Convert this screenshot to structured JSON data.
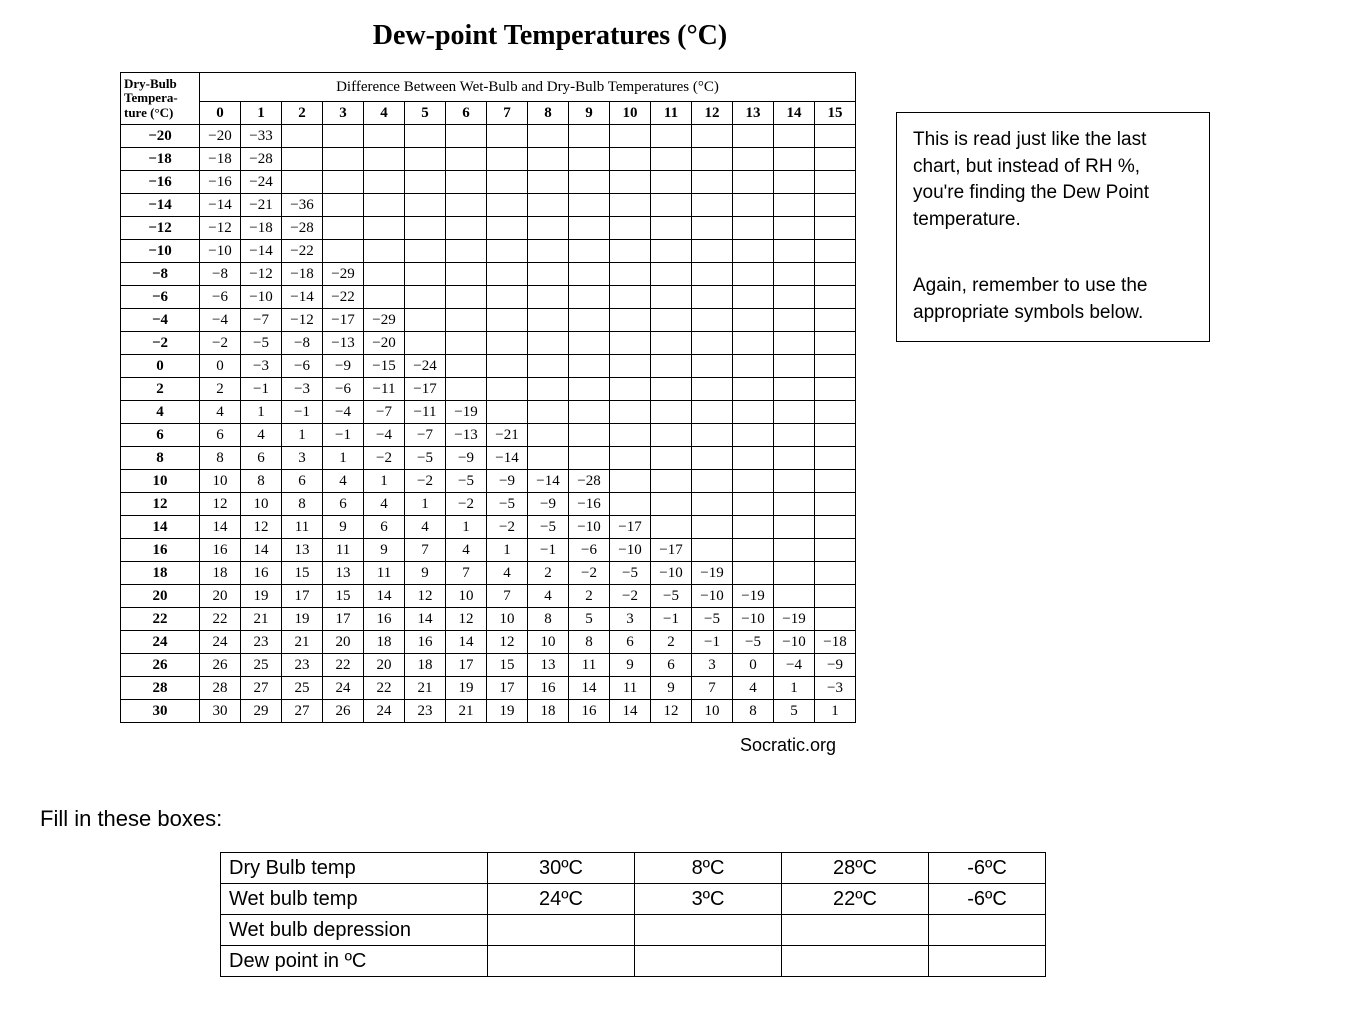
{
  "title": "Dew-point Temperatures (°C)",
  "table": {
    "corner_label": "Dry-Bulb Tempera- ture (°C)",
    "diff_header": "Difference Between Wet-Bulb and Dry-Bulb Temperatures (°C)",
    "columns": [
      "0",
      "1",
      "2",
      "3",
      "4",
      "5",
      "6",
      "7",
      "8",
      "9",
      "10",
      "11",
      "12",
      "13",
      "14",
      "15"
    ],
    "rows": [
      {
        "h": "−20",
        "c": [
          "−20",
          "−33",
          "",
          "",
          "",
          "",
          "",
          "",
          "",
          "",
          "",
          "",
          "",
          "",
          "",
          ""
        ]
      },
      {
        "h": "−18",
        "c": [
          "−18",
          "−28",
          "",
          "",
          "",
          "",
          "",
          "",
          "",
          "",
          "",
          "",
          "",
          "",
          "",
          ""
        ]
      },
      {
        "h": "−16",
        "c": [
          "−16",
          "−24",
          "",
          "",
          "",
          "",
          "",
          "",
          "",
          "",
          "",
          "",
          "",
          "",
          "",
          ""
        ]
      },
      {
        "h": "−14",
        "c": [
          "−14",
          "−21",
          "−36",
          "",
          "",
          "",
          "",
          "",
          "",
          "",
          "",
          "",
          "",
          "",
          "",
          ""
        ]
      },
      {
        "h": "−12",
        "c": [
          "−12",
          "−18",
          "−28",
          "",
          "",
          "",
          "",
          "",
          "",
          "",
          "",
          "",
          "",
          "",
          "",
          ""
        ]
      },
      {
        "h": "−10",
        "c": [
          "−10",
          "−14",
          "−22",
          "",
          "",
          "",
          "",
          "",
          "",
          "",
          "",
          "",
          "",
          "",
          "",
          ""
        ]
      },
      {
        "h": "−8",
        "c": [
          "−8",
          "−12",
          "−18",
          "−29",
          "",
          "",
          "",
          "",
          "",
          "",
          "",
          "",
          "",
          "",
          "",
          ""
        ]
      },
      {
        "h": "−6",
        "c": [
          "−6",
          "−10",
          "−14",
          "−22",
          "",
          "",
          "",
          "",
          "",
          "",
          "",
          "",
          "",
          "",
          "",
          ""
        ]
      },
      {
        "h": "−4",
        "c": [
          "−4",
          "−7",
          "−12",
          "−17",
          "−29",
          "",
          "",
          "",
          "",
          "",
          "",
          "",
          "",
          "",
          "",
          ""
        ]
      },
      {
        "h": "−2",
        "c": [
          "−2",
          "−5",
          "−8",
          "−13",
          "−20",
          "",
          "",
          "",
          "",
          "",
          "",
          "",
          "",
          "",
          "",
          ""
        ]
      },
      {
        "h": "0",
        "c": [
          "0",
          "−3",
          "−6",
          "−9",
          "−15",
          "−24",
          "",
          "",
          "",
          "",
          "",
          "",
          "",
          "",
          "",
          ""
        ]
      },
      {
        "h": "2",
        "c": [
          "2",
          "−1",
          "−3",
          "−6",
          "−11",
          "−17",
          "",
          "",
          "",
          "",
          "",
          "",
          "",
          "",
          "",
          ""
        ]
      },
      {
        "h": "4",
        "c": [
          "4",
          "1",
          "−1",
          "−4",
          "−7",
          "−11",
          "−19",
          "",
          "",
          "",
          "",
          "",
          "",
          "",
          "",
          ""
        ]
      },
      {
        "h": "6",
        "c": [
          "6",
          "4",
          "1",
          "−1",
          "−4",
          "−7",
          "−13",
          "−21",
          "",
          "",
          "",
          "",
          "",
          "",
          "",
          ""
        ]
      },
      {
        "h": "8",
        "c": [
          "8",
          "6",
          "3",
          "1",
          "−2",
          "−5",
          "−9",
          "−14",
          "",
          "",
          "",
          "",
          "",
          "",
          "",
          ""
        ]
      },
      {
        "h": "10",
        "c": [
          "10",
          "8",
          "6",
          "4",
          "1",
          "−2",
          "−5",
          "−9",
          "−14",
          "−28",
          "",
          "",
          "",
          "",
          "",
          ""
        ]
      },
      {
        "h": "12",
        "c": [
          "12",
          "10",
          "8",
          "6",
          "4",
          "1",
          "−2",
          "−5",
          "−9",
          "−16",
          "",
          "",
          "",
          "",
          "",
          ""
        ]
      },
      {
        "h": "14",
        "c": [
          "14",
          "12",
          "11",
          "9",
          "6",
          "4",
          "1",
          "−2",
          "−5",
          "−10",
          "−17",
          "",
          "",
          "",
          "",
          ""
        ]
      },
      {
        "h": "16",
        "c": [
          "16",
          "14",
          "13",
          "11",
          "9",
          "7",
          "4",
          "1",
          "−1",
          "−6",
          "−10",
          "−17",
          "",
          "",
          "",
          ""
        ]
      },
      {
        "h": "18",
        "c": [
          "18",
          "16",
          "15",
          "13",
          "11",
          "9",
          "7",
          "4",
          "2",
          "−2",
          "−5",
          "−10",
          "−19",
          "",
          "",
          ""
        ]
      },
      {
        "h": "20",
        "c": [
          "20",
          "19",
          "17",
          "15",
          "14",
          "12",
          "10",
          "7",
          "4",
          "2",
          "−2",
          "−5",
          "−10",
          "−19",
          "",
          ""
        ]
      },
      {
        "h": "22",
        "c": [
          "22",
          "21",
          "19",
          "17",
          "16",
          "14",
          "12",
          "10",
          "8",
          "5",
          "3",
          "−1",
          "−5",
          "−10",
          "−19",
          ""
        ]
      },
      {
        "h": "24",
        "c": [
          "24",
          "23",
          "21",
          "20",
          "18",
          "16",
          "14",
          "12",
          "10",
          "8",
          "6",
          "2",
          "−1",
          "−5",
          "−10",
          "−18"
        ]
      },
      {
        "h": "26",
        "c": [
          "26",
          "25",
          "23",
          "22",
          "20",
          "18",
          "17",
          "15",
          "13",
          "11",
          "9",
          "6",
          "3",
          "0",
          "−4",
          "−9"
        ]
      },
      {
        "h": "28",
        "c": [
          "28",
          "27",
          "25",
          "24",
          "22",
          "21",
          "19",
          "17",
          "16",
          "14",
          "11",
          "9",
          "7",
          "4",
          "1",
          "−3"
        ]
      },
      {
        "h": "30",
        "c": [
          "30",
          "29",
          "27",
          "26",
          "24",
          "23",
          "21",
          "19",
          "18",
          "16",
          "14",
          "12",
          "10",
          "8",
          "5",
          "1"
        ]
      }
    ]
  },
  "source": "Socratic.org",
  "sidebox": {
    "p1": "This is read just like the last chart, but instead of RH %, you're finding the Dew Point temperature.",
    "p2": "Again, remember to use the appropriate symbols below."
  },
  "fill_label": "Fill in these boxes:",
  "exercise": {
    "row_labels": [
      "Dry Bulb temp",
      "Wet bulb temp",
      "Wet bulb depression",
      "Dew point in ºC"
    ],
    "cols": [
      [
        "30ºC",
        "24ºC",
        "",
        ""
      ],
      [
        "8ºC",
        "3ºC",
        "",
        ""
      ],
      [
        "28ºC",
        "22ºC",
        "",
        ""
      ],
      [
        "-6ºC",
        "-6ºC",
        "",
        ""
      ]
    ]
  }
}
